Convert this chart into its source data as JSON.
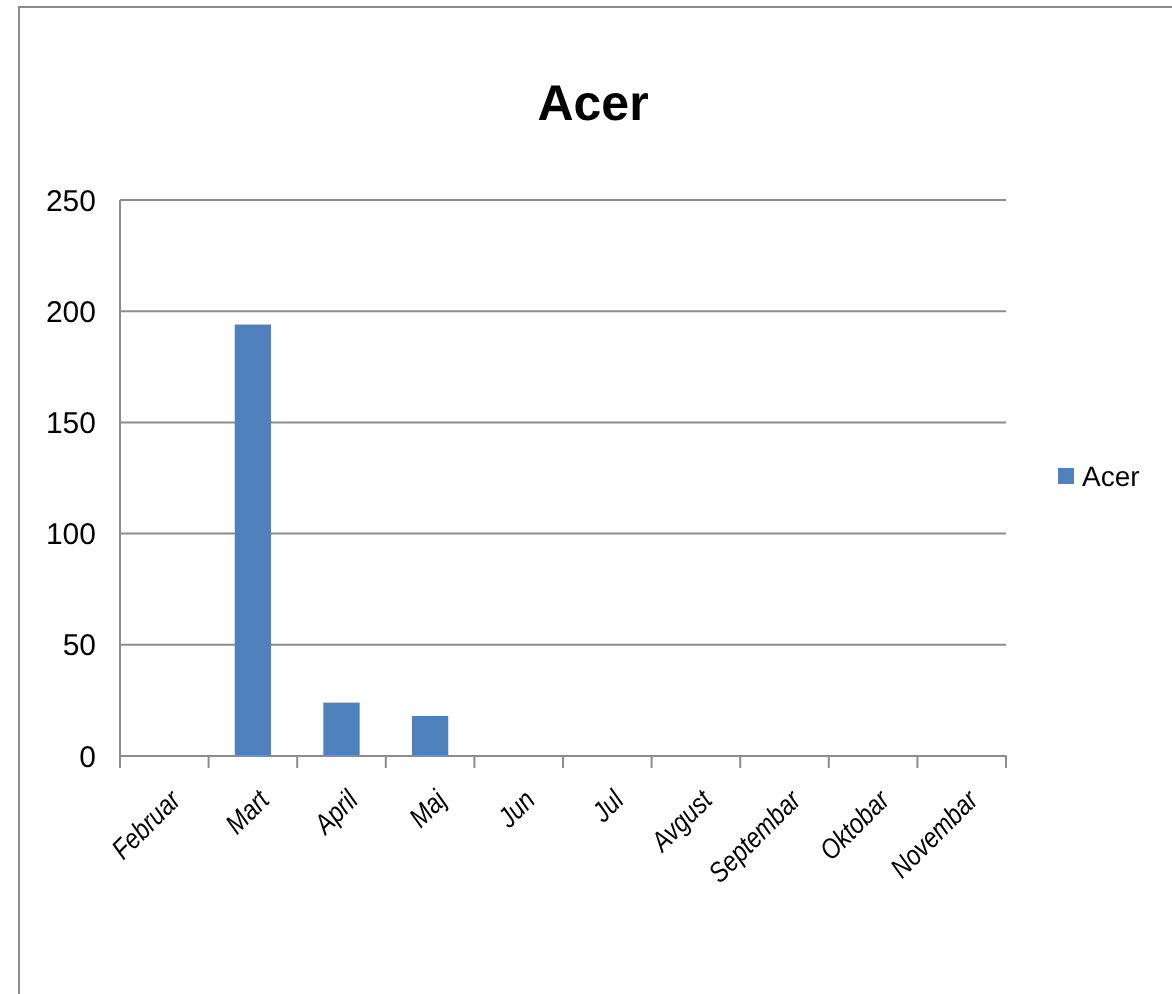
{
  "chart_data": {
    "type": "bar",
    "title": "Acer",
    "categories": [
      "Februar",
      "Mart",
      "April",
      "Maj",
      "Jun",
      "Jul",
      "Avgust",
      "Septembar",
      "Oktobar",
      "Novembar"
    ],
    "series": [
      {
        "name": "Acer",
        "color": "#4f81bd",
        "values": [
          null,
          194,
          24,
          18,
          null,
          null,
          null,
          null,
          null,
          null
        ]
      }
    ],
    "ylim": [
      0,
      250
    ],
    "yticks": [
      0,
      50,
      100,
      150,
      200,
      250
    ],
    "grid": "y",
    "legend": "right"
  }
}
